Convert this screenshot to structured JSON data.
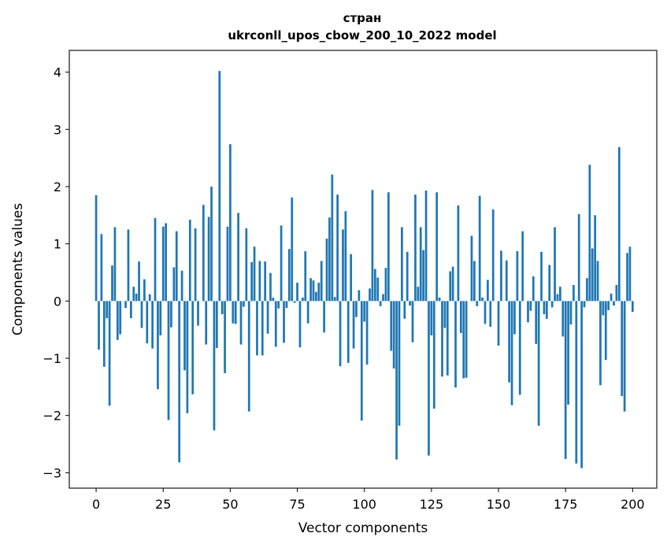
{
  "chart_data": {
    "type": "bar",
    "title_line1": "стран",
    "title_line2": "ukrconll_upos_cbow_200_10_2022 model",
    "xlabel": "Vector components",
    "ylabel": "Components values",
    "xlim": [
      -10,
      209
    ],
    "ylim": [
      -3.27,
      4.38
    ],
    "x_ticks": [
      0,
      25,
      50,
      75,
      100,
      125,
      150,
      175,
      200
    ],
    "x_tick_labels": [
      "0",
      "25",
      "50",
      "75",
      "100",
      "125",
      "150",
      "175",
      "200"
    ],
    "y_ticks": [
      -3,
      -2,
      -1,
      0,
      1,
      2,
      3,
      4
    ],
    "y_tick_labels": [
      "−3",
      "−2",
      "−1",
      "0",
      "1",
      "2",
      "3",
      "4"
    ],
    "bar_color": "#1f77b4",
    "values": [
      1.85,
      -0.85,
      1.17,
      -1.15,
      -0.3,
      -1.83,
      0.62,
      1.29,
      -0.68,
      -0.58,
      0.0,
      -0.12,
      1.25,
      -0.3,
      0.25,
      0.13,
      0.69,
      -0.47,
      0.38,
      -0.74,
      0.12,
      -0.83,
      1.45,
      -1.54,
      -0.6,
      1.3,
      1.36,
      -2.08,
      -0.46,
      0.59,
      1.22,
      -2.82,
      0.53,
      -1.21,
      -1.96,
      1.42,
      -1.63,
      1.27,
      -0.43,
      0.0,
      1.68,
      -0.76,
      1.47,
      2.0,
      -2.26,
      -0.82,
      4.02,
      -0.23,
      -1.26,
      1.3,
      2.74,
      -0.39,
      -0.4,
      1.54,
      -0.76,
      -0.1,
      1.27,
      -1.93,
      0.68,
      0.95,
      -0.95,
      0.7,
      -0.95,
      0.69,
      -0.57,
      0.49,
      0.06,
      -0.8,
      -0.13,
      1.32,
      -0.73,
      -0.12,
      0.91,
      1.81,
      -0.03,
      0.32,
      -0.81,
      0.06,
      0.87,
      -0.39,
      0.4,
      0.36,
      0.16,
      0.32,
      0.7,
      -0.55,
      1.09,
      1.46,
      2.21,
      0.07,
      1.86,
      -1.14,
      1.25,
      1.57,
      -1.08,
      0.82,
      -0.83,
      -0.28,
      0.19,
      -2.09,
      -0.36,
      -1.11,
      0.22,
      1.94,
      0.56,
      0.41,
      -0.09,
      0.12,
      0.58,
      1.9,
      -0.87,
      -1.18,
      -2.77,
      -2.18,
      1.29,
      -0.31,
      0.86,
      -0.08,
      -0.72,
      1.86,
      0.25,
      1.29,
      0.89,
      1.93,
      -2.7,
      -0.6,
      -1.88,
      1.9,
      0.06,
      -1.32,
      -0.47,
      -1.3,
      0.52,
      0.6,
      -1.51,
      1.67,
      -0.56,
      -1.35,
      -1.34,
      0.0,
      1.14,
      0.7,
      -0.09,
      1.84,
      0.06,
      -0.4,
      0.37,
      -0.45,
      1.6,
      0.0,
      -0.78,
      0.88,
      0.0,
      0.71,
      -1.42,
      -1.82,
      -0.58,
      0.87,
      -1.64,
      1.22,
      0.0,
      -0.37,
      -0.17,
      0.43,
      -0.75,
      -2.18,
      0.86,
      -0.23,
      -0.31,
      0.63,
      -0.11,
      1.29,
      0.12,
      0.25,
      -0.62,
      -2.76,
      -1.81,
      -0.41,
      0.28,
      -2.84,
      1.52,
      -2.92,
      -0.11,
      0.4,
      2.38,
      0.92,
      1.5,
      0.7,
      -1.47,
      -0.25,
      -1.03,
      -0.16,
      0.13,
      -0.08,
      0.28,
      2.69,
      -1.66,
      -1.93,
      0.84,
      0.95,
      -0.19
    ]
  }
}
